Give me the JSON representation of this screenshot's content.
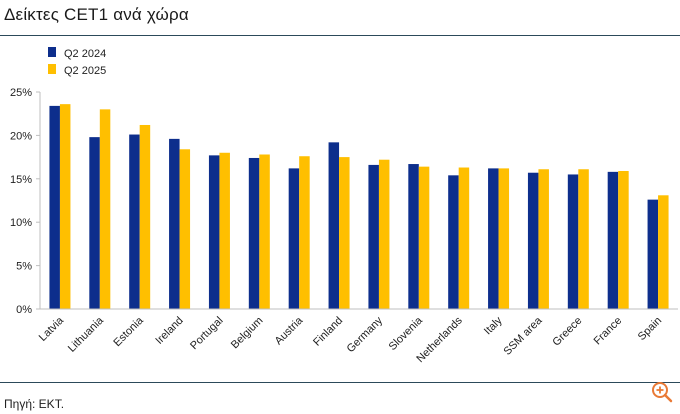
{
  "title": "Δείκτες CET1 ανά χώρα",
  "source": "Πηγή: ΕΚΤ.",
  "colors": {
    "series1": "#0d2e8c",
    "series2": "#ffbf00",
    "axis": "#bfbfbf",
    "zoom_icon": "#e97a36"
  },
  "chart_data": {
    "type": "bar",
    "categories": [
      "Latvia",
      "Lithuania",
      "Estonia",
      "Ireland",
      "Portugal",
      "Belgium",
      "Austria",
      "Finland",
      "Germany",
      "Slovenia",
      "Netherlands",
      "Italy",
      "SSM area",
      "Greece",
      "France",
      "Spain"
    ],
    "series": [
      {
        "name": "Q2 2024",
        "values": [
          23.4,
          19.8,
          20.1,
          19.6,
          17.7,
          17.4,
          16.2,
          19.2,
          16.6,
          16.7,
          15.4,
          16.2,
          15.7,
          15.5,
          15.8,
          12.6
        ]
      },
      {
        "name": "Q2 2025",
        "values": [
          23.6,
          23.0,
          21.2,
          18.4,
          18.0,
          17.8,
          17.6,
          17.5,
          17.2,
          16.4,
          16.3,
          16.2,
          16.1,
          16.1,
          15.9,
          13.1
        ]
      }
    ],
    "yticks": [
      "0%",
      "5%",
      "10%",
      "15%",
      "20%",
      "25%"
    ],
    "ylim": [
      0,
      25
    ],
    "grid": false,
    "legend_position": "top-left"
  }
}
